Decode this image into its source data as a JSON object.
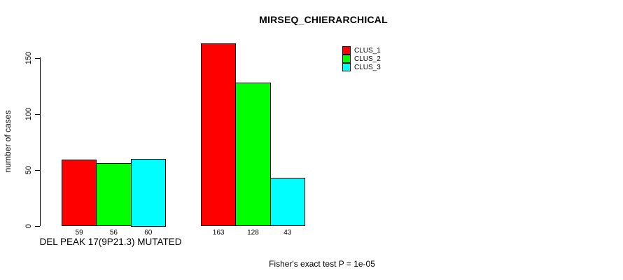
{
  "figure": {
    "background": "#ffffff",
    "text_color": "#000000"
  },
  "chart_data": {
    "type": "bar",
    "title": "MIRSEQ_CHIERARCHICAL",
    "ylabel": "number of cases",
    "xlabel": "DEL PEAK 17(9P21.3) MUTATED",
    "subtitle": "Fisher's exact test P = 1e-05",
    "ylim": [
      0,
      150
    ],
    "yticks": [
      0,
      50,
      100,
      150
    ],
    "grid": false,
    "legend_position": "top-right",
    "categories": [
      "DEL PEAK 17(9P21.3) MUTATED",
      ""
    ],
    "series": [
      {
        "name": "CLUS_1",
        "color": "#FF0000",
        "values": [
          59,
          163
        ]
      },
      {
        "name": "CLUS_2",
        "color": "#00FF00",
        "values": [
          56,
          128
        ]
      },
      {
        "name": "CLUS_3",
        "color": "#00FFFF",
        "values": [
          60,
          43
        ]
      }
    ],
    "bar_labels": [
      [
        59,
        56,
        60
      ],
      [
        163,
        128,
        43
      ]
    ]
  }
}
